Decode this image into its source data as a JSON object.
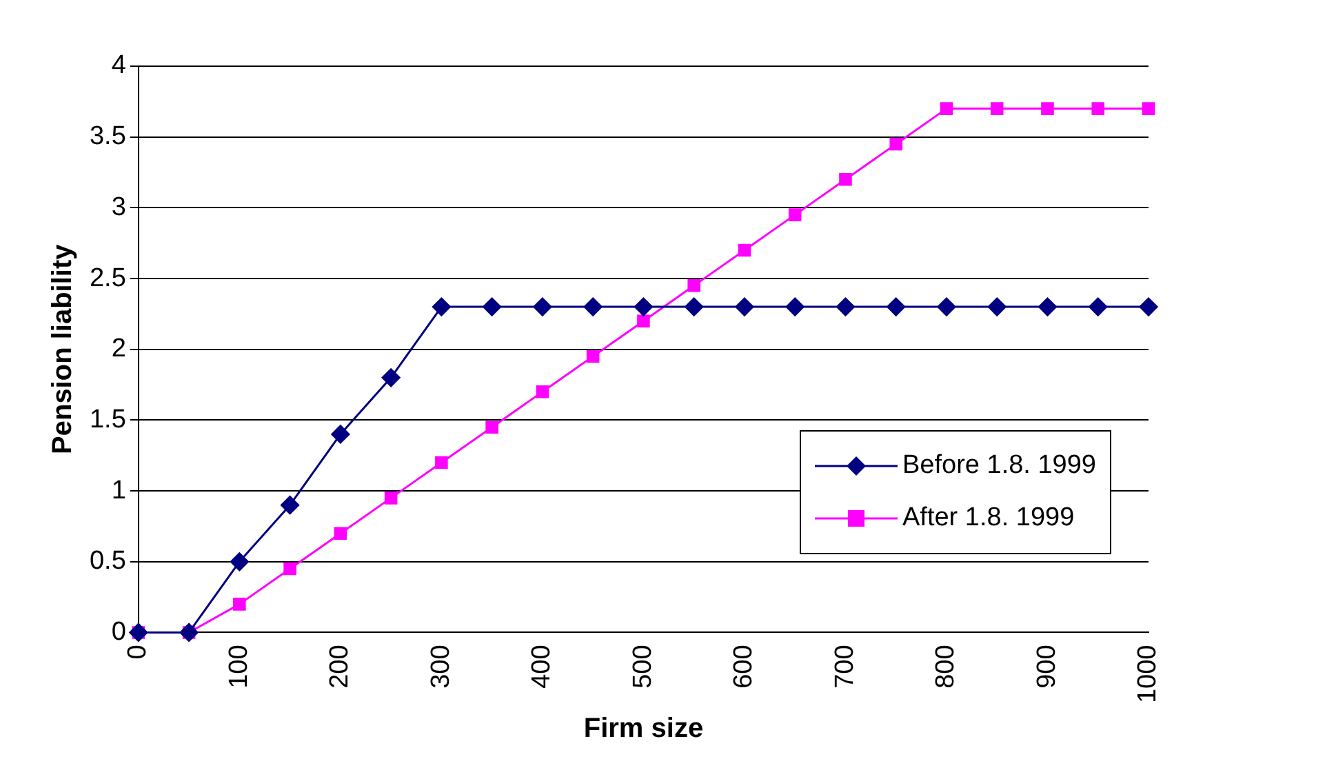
{
  "chart_data": {
    "type": "line",
    "xlabel": "Firm size",
    "ylabel": "Pension liability",
    "x": [
      0,
      50,
      100,
      150,
      200,
      250,
      300,
      350,
      400,
      450,
      500,
      550,
      600,
      650,
      700,
      750,
      800,
      850,
      900,
      950,
      1000
    ],
    "series": [
      {
        "name": "Before 1.8. 1999",
        "color": "#000080",
        "marker": "diamond",
        "values": [
          0,
          0,
          0.5,
          0.9,
          1.4,
          1.8,
          2.3,
          2.3,
          2.3,
          2.3,
          2.3,
          2.3,
          2.3,
          2.3,
          2.3,
          2.3,
          2.3,
          2.3,
          2.3,
          2.3,
          2.3
        ]
      },
      {
        "name": "After 1.8. 1999",
        "color": "#ff00ff",
        "marker": "square",
        "values": [
          0,
          0,
          0.2,
          0.45,
          0.7,
          0.95,
          1.2,
          1.45,
          1.7,
          1.95,
          2.2,
          2.45,
          2.7,
          2.95,
          3.2,
          3.45,
          3.7,
          3.7,
          3.7,
          3.7,
          3.7
        ]
      }
    ],
    "xlim": [
      0,
      1000
    ],
    "xticks": [
      0,
      100,
      200,
      300,
      400,
      500,
      600,
      700,
      800,
      900,
      1000
    ],
    "ylim": [
      0,
      4
    ],
    "yticks": [
      0,
      0.5,
      1,
      1.5,
      2,
      2.5,
      3,
      3.5,
      4
    ],
    "grid": "y",
    "legend": "right",
    "line_style": "solid"
  }
}
